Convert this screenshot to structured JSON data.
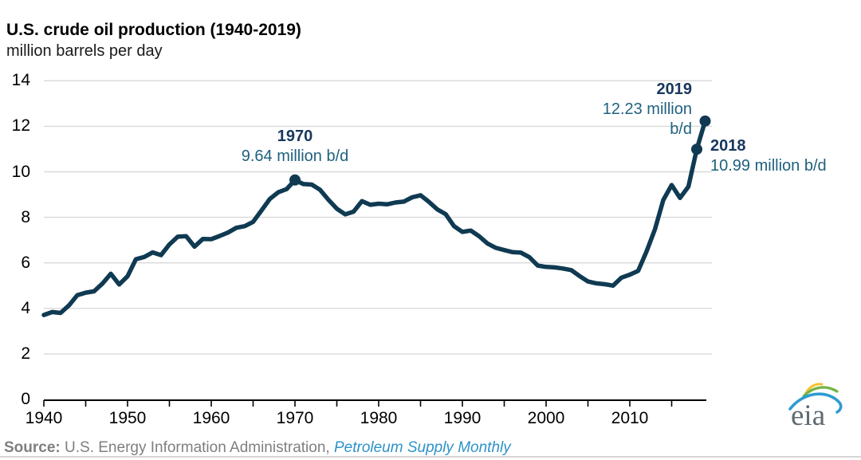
{
  "header": {
    "title": "U.S. crude oil production (1940-2019)",
    "subtitle": "million barrels per day"
  },
  "annotations": [
    {
      "year_label": "1970",
      "value_lines": [
        "9.64 million b/d"
      ],
      "year": 1970,
      "value": 9.64
    },
    {
      "year_label": "2019",
      "value_lines": [
        "12.23 million",
        "b/d"
      ],
      "year": 2019,
      "value": 12.23
    },
    {
      "year_label": "2018",
      "value_lines": [
        "10.99 million b/d"
      ],
      "year": 2018,
      "value": 10.99
    }
  ],
  "footer": {
    "source_prefix": "Source:",
    "source_text": "U.S. Energy Information Administration,",
    "source_publication": "Petroleum Supply Monthly",
    "logo_text": "eia"
  },
  "colors": {
    "line": "#0f3a52",
    "grid": "#d9d9d9",
    "axis": "#000000",
    "year_label": "#17375e",
    "value_label": "#20617f",
    "source_gray": "#7f7f7f",
    "publication_blue": "#2e93c9",
    "logo_blue": "#2d9bd3",
    "logo_green": "#71b343",
    "logo_yellow": "#f6c12e"
  },
  "chart_data": {
    "type": "line",
    "title": "U.S. crude oil production (1940-2019)",
    "ylabel": "million barrels per day",
    "series_name": "U.S. crude oil production",
    "x": [
      1940,
      1941,
      1942,
      1943,
      1944,
      1945,
      1946,
      1947,
      1948,
      1949,
      1950,
      1951,
      1952,
      1953,
      1954,
      1955,
      1956,
      1957,
      1958,
      1959,
      1960,
      1961,
      1962,
      1963,
      1964,
      1965,
      1966,
      1967,
      1968,
      1969,
      1970,
      1971,
      1972,
      1973,
      1974,
      1975,
      1976,
      1977,
      1978,
      1979,
      1980,
      1981,
      1982,
      1983,
      1984,
      1985,
      1986,
      1987,
      1988,
      1989,
      1990,
      1991,
      1992,
      1993,
      1994,
      1995,
      1996,
      1997,
      1998,
      1999,
      2000,
      2001,
      2002,
      2003,
      2004,
      2005,
      2006,
      2007,
      2008,
      2009,
      2010,
      2011,
      2012,
      2013,
      2014,
      2015,
      2016,
      2017,
      2018,
      2019
    ],
    "values": [
      3.71,
      3.84,
      3.8,
      4.13,
      4.58,
      4.69,
      4.75,
      5.09,
      5.52,
      5.05,
      5.41,
      6.16,
      6.26,
      6.46,
      6.34,
      6.81,
      7.15,
      7.17,
      6.71,
      7.05,
      7.04,
      7.18,
      7.33,
      7.54,
      7.61,
      7.8,
      8.3,
      8.81,
      9.1,
      9.24,
      9.64,
      9.46,
      9.44,
      9.21,
      8.77,
      8.38,
      8.13,
      8.25,
      8.71,
      8.55,
      8.6,
      8.57,
      8.65,
      8.69,
      8.88,
      8.97,
      8.68,
      8.35,
      8.14,
      7.61,
      7.36,
      7.42,
      7.17,
      6.85,
      6.66,
      6.56,
      6.47,
      6.45,
      6.25,
      5.88,
      5.82,
      5.8,
      5.75,
      5.68,
      5.42,
      5.18,
      5.1,
      5.06,
      5.0,
      5.35,
      5.48,
      5.65,
      6.5,
      7.47,
      8.76,
      9.42,
      8.85,
      9.35,
      10.99,
      12.23
    ],
    "xlim": [
      1940,
      2019
    ],
    "ylim": [
      0,
      14
    ],
    "yticks": [
      0,
      2,
      4,
      6,
      8,
      10,
      12,
      14
    ],
    "xtick_labels": [
      1940,
      1950,
      1960,
      1970,
      1980,
      1990,
      2000,
      2010
    ],
    "xtick_minor_step": 5,
    "grid": "horizontal",
    "legend": "none",
    "marked_points": [
      {
        "year": 1970,
        "value": 9.64
      },
      {
        "year": 2018,
        "value": 10.99
      },
      {
        "year": 2019,
        "value": 12.23
      }
    ]
  }
}
